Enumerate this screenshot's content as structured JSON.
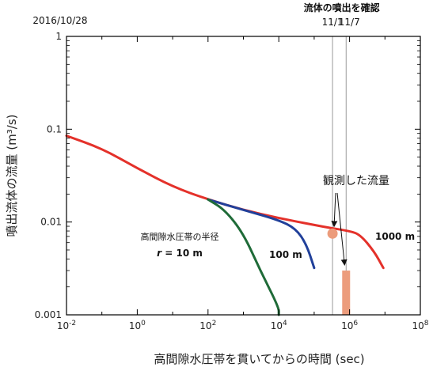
{
  "chart_data": {
    "type": "line",
    "xscale": "log",
    "yscale": "log",
    "xlim": [
      0.01,
      100000000
    ],
    "ylim": [
      0.001,
      1
    ],
    "xlabel": "高間隙水圧帯を貫いてからの時間 (sec)",
    "ylabel": "噴出流体の流量 (m³/s)",
    "x_ticks": [
      {
        "value": 0.01,
        "base": "10",
        "exp": "-2"
      },
      {
        "value": 1,
        "base": "10",
        "exp": "0"
      },
      {
        "value": 100,
        "base": "10",
        "exp": "2"
      },
      {
        "value": 10000,
        "base": "10",
        "exp": "4"
      },
      {
        "value": 1000000,
        "base": "10",
        "exp": "6"
      },
      {
        "value": 100000000,
        "base": "10",
        "exp": "8"
      }
    ],
    "y_ticks": [
      {
        "value": 1,
        "label": "1"
      },
      {
        "value": 0.1,
        "label": "0.1"
      },
      {
        "value": 0.01,
        "label": "0.01"
      },
      {
        "value": 0.001,
        "label": "0.001"
      }
    ],
    "start_date_label": "2016/10/28",
    "series": [
      {
        "name": "1000 m",
        "color": "#e4312a",
        "x": [
          0.01,
          0.1,
          1,
          10,
          100,
          1000,
          10000,
          100000,
          300000,
          1000000,
          2000000,
          5000000,
          9000000
        ],
        "y": [
          0.085,
          0.062,
          0.038,
          0.024,
          0.0175,
          0.0135,
          0.011,
          0.0093,
          0.0086,
          0.008,
          0.0073,
          0.0048,
          0.0032
        ]
      },
      {
        "name": "100 m",
        "color": "#21409a",
        "x": [
          100,
          1000,
          10000,
          30000,
          60000,
          100000
        ],
        "y": [
          0.0175,
          0.0135,
          0.0105,
          0.0085,
          0.0058,
          0.0032
        ]
      },
      {
        "name": "10 m",
        "label_prefix": "高間隙水圧帯の半径",
        "label_r": "r",
        "label_value": "= 10 m",
        "color": "#1f6b38",
        "x": [
          100,
          300,
          1000,
          3000,
          10000,
          10000
        ],
        "y": [
          0.0175,
          0.0135,
          0.0075,
          0.003,
          0.0012,
          0.001
        ]
      }
    ],
    "event_lines": [
      {
        "label": "11/1",
        "x": 330000
      },
      {
        "label": "11/7",
        "x": 800000
      }
    ],
    "event_header": "流体の噴出を確認",
    "observed": {
      "label": "観測した流量",
      "color": "#ec9c7c",
      "point": {
        "x": 330000,
        "y": 0.0075
      },
      "bar": {
        "x": 800000,
        "y_low": 0.001,
        "y_high": 0.003
      }
    }
  }
}
